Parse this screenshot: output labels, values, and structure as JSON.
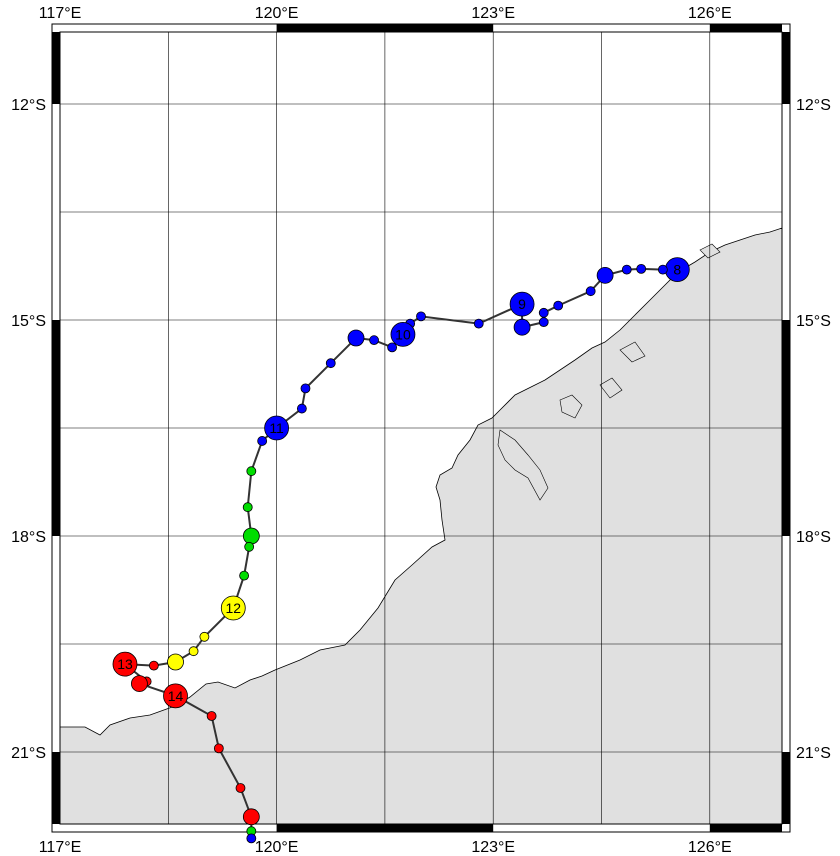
{
  "map": {
    "lon_range": [
      117,
      127
    ],
    "lat_range": [
      -22,
      -11
    ],
    "grid": true,
    "land_color": "#e0e0e0",
    "ocean_color": "#ffffff",
    "track_color": "#333333",
    "lon_ticks": [
      {
        "value": 117,
        "label": "117°E"
      },
      {
        "value": 120,
        "label": "120°E"
      },
      {
        "value": 123,
        "label": "123°E"
      },
      {
        "value": 126,
        "label": "126°E"
      }
    ],
    "lat_ticks": [
      {
        "value": -12,
        "label": "12°S"
      },
      {
        "value": -15,
        "label": "15°S"
      },
      {
        "value": -18,
        "label": "18°S"
      },
      {
        "value": -21,
        "label": "21°S"
      }
    ]
  },
  "intensity_colors": {
    "blue": "#0000ff",
    "green": "#00dd00",
    "yellow": "#ffff00",
    "red": "#ff0000"
  },
  "track": [
    {
      "lon": 125.55,
      "lat": -14.3,
      "color": "blue",
      "size": "large",
      "label": "8"
    },
    {
      "lon": 125.35,
      "lat": -14.3,
      "color": "blue",
      "size": "small"
    },
    {
      "lon": 125.05,
      "lat": -14.29,
      "color": "blue",
      "size": "small"
    },
    {
      "lon": 124.85,
      "lat": -14.3,
      "color": "blue",
      "size": "small"
    },
    {
      "lon": 124.55,
      "lat": -14.38,
      "color": "blue",
      "size": "medium"
    },
    {
      "lon": 124.35,
      "lat": -14.6,
      "color": "blue",
      "size": "small"
    },
    {
      "lon": 123.9,
      "lat": -14.8,
      "color": "blue",
      "size": "small"
    },
    {
      "lon": 123.7,
      "lat": -14.9,
      "color": "blue",
      "size": "small"
    },
    {
      "lon": 123.7,
      "lat": -15.03,
      "color": "blue",
      "size": "small"
    },
    {
      "lon": 123.4,
      "lat": -15.1,
      "color": "blue",
      "size": "medium"
    },
    {
      "lon": 123.4,
      "lat": -14.78,
      "color": "blue",
      "size": "large",
      "label": "9"
    },
    {
      "lon": 122.8,
      "lat": -15.05,
      "color": "blue",
      "size": "small"
    },
    {
      "lon": 122.0,
      "lat": -14.95,
      "color": "blue",
      "size": "small"
    },
    {
      "lon": 121.85,
      "lat": -15.05,
      "color": "blue",
      "size": "small"
    },
    {
      "lon": 121.75,
      "lat": -15.2,
      "color": "blue",
      "size": "large",
      "label": "10"
    },
    {
      "lon": 121.6,
      "lat": -15.38,
      "color": "blue",
      "size": "small"
    },
    {
      "lon": 121.35,
      "lat": -15.28,
      "color": "blue",
      "size": "small"
    },
    {
      "lon": 121.1,
      "lat": -15.25,
      "color": "blue",
      "size": "medium"
    },
    {
      "lon": 120.75,
      "lat": -15.6,
      "color": "blue",
      "size": "small"
    },
    {
      "lon": 120.4,
      "lat": -15.95,
      "color": "blue",
      "size": "small"
    },
    {
      "lon": 120.35,
      "lat": -16.23,
      "color": "blue",
      "size": "small"
    },
    {
      "lon": 120.0,
      "lat": -16.5,
      "color": "blue",
      "size": "large",
      "label": "11"
    },
    {
      "lon": 119.8,
      "lat": -16.68,
      "color": "blue",
      "size": "small"
    },
    {
      "lon": 119.65,
      "lat": -17.1,
      "color": "green",
      "size": "small"
    },
    {
      "lon": 119.6,
      "lat": -17.6,
      "color": "green",
      "size": "small"
    },
    {
      "lon": 119.65,
      "lat": -18.0,
      "color": "green",
      "size": "medium"
    },
    {
      "lon": 119.62,
      "lat": -18.15,
      "color": "green",
      "size": "small"
    },
    {
      "lon": 119.55,
      "lat": -18.55,
      "color": "green",
      "size": "small"
    },
    {
      "lon": 119.4,
      "lat": -19.0,
      "color": "yellow",
      "size": "large",
      "label": "12"
    },
    {
      "lon": 119.0,
      "lat": -19.4,
      "color": "yellow",
      "size": "small"
    },
    {
      "lon": 118.85,
      "lat": -19.6,
      "color": "yellow",
      "size": "small"
    },
    {
      "lon": 118.6,
      "lat": -19.75,
      "color": "yellow",
      "size": "medium"
    },
    {
      "lon": 118.3,
      "lat": -19.8,
      "color": "red",
      "size": "small"
    },
    {
      "lon": 117.9,
      "lat": -19.78,
      "color": "red",
      "size": "large",
      "label": "13"
    },
    {
      "lon": 118.2,
      "lat": -20.02,
      "color": "red",
      "size": "small"
    },
    {
      "lon": 118.1,
      "lat": -20.05,
      "color": "red",
      "size": "medium"
    },
    {
      "lon": 118.6,
      "lat": -20.22,
      "color": "red",
      "size": "large",
      "label": "14"
    },
    {
      "lon": 119.1,
      "lat": -20.5,
      "color": "red",
      "size": "small"
    },
    {
      "lon": 119.2,
      "lat": -20.95,
      "color": "red",
      "size": "small"
    },
    {
      "lon": 119.5,
      "lat": -21.5,
      "color": "red",
      "size": "small"
    },
    {
      "lon": 119.65,
      "lat": -21.9,
      "color": "red",
      "size": "medium"
    },
    {
      "lon": 119.65,
      "lat": -22.1,
      "color": "green",
      "size": "small"
    },
    {
      "lon": 119.65,
      "lat": -22.2,
      "color": "blue",
      "size": "small"
    }
  ]
}
